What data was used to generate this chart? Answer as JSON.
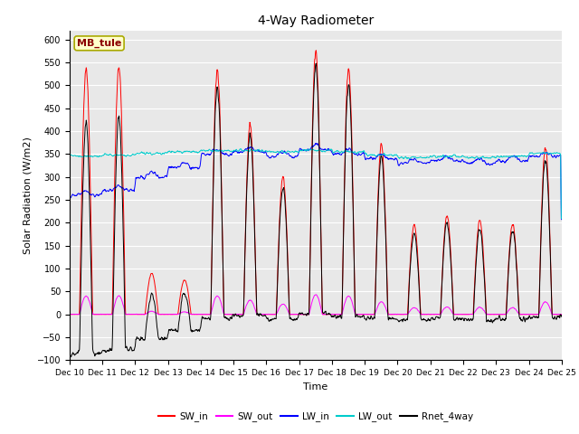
{
  "title": "4-Way Radiometer",
  "xlabel": "Time",
  "ylabel": "Solar Radiation (W/m2)",
  "ylim": [
    -100,
    620
  ],
  "yticks": [
    -100,
    -50,
    0,
    50,
    100,
    150,
    200,
    250,
    300,
    350,
    400,
    450,
    500,
    550,
    600
  ],
  "x_tick_labels": [
    "Dec 10",
    "Dec 11",
    "Dec 12",
    "Dec 13",
    "Dec 14",
    "Dec 15",
    "Dec 16",
    "Dec 17",
    "Dec 18",
    "Dec 19",
    "Dec 20",
    "Dec 21",
    "Dec 22",
    "Dec 23",
    "Dec 24",
    "Dec 25"
  ],
  "station_label": "MB_tule",
  "station_label_color": "#8B0000",
  "station_box_facecolor": "#FFFFCC",
  "station_box_edgecolor": "#AAAA00",
  "bg_color": "#E8E8E8",
  "legend_entries": [
    "SW_in",
    "SW_out",
    "LW_in",
    "LW_out",
    "Rnet_4way"
  ],
  "legend_colors": [
    "#FF0000",
    "#FF00FF",
    "#0000FF",
    "#00CCCC",
    "#000000"
  ],
  "line_colors": {
    "SW_in": "#FF0000",
    "SW_out": "#FF00FF",
    "LW_in": "#0000FF",
    "LW_out": "#00CCCC",
    "Rnet_4way": "#000000"
  },
  "figsize": [
    6.4,
    4.8
  ],
  "dpi": 100
}
